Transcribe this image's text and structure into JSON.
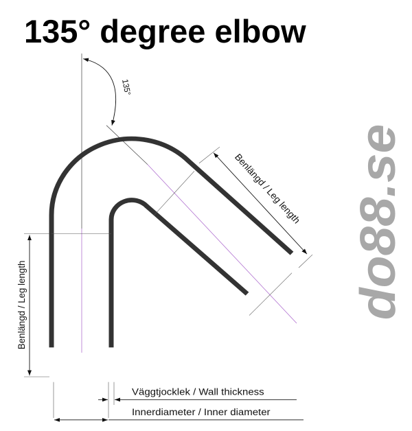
{
  "title": "135° degree elbow",
  "angle_label": "135°",
  "leg_length_label": "Benlängd / Leg length",
  "wall_thickness_label": "Väggtjocklek / Wall thickness",
  "inner_diameter_label": "Innerdiameter / Inner diameter",
  "logo_text": "do88.se",
  "colors": {
    "pipe": "#333333",
    "centerline": "#b070d0",
    "logo": "#a8a8a8"
  }
}
